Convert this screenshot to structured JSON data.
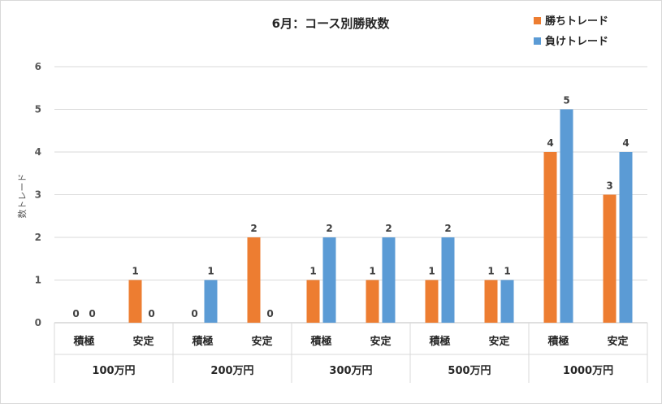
{
  "chart_data": {
    "type": "bar",
    "title": "6月：コース別勝敗数",
    "ylabel": "数トレード",
    "ylim": [
      0,
      6
    ],
    "yticks": [
      0,
      1,
      2,
      3,
      4,
      5,
      6
    ],
    "grid": true,
    "legend_position": "top-right",
    "groups": [
      "100万円",
      "200万円",
      "300万円",
      "500万円",
      "1000万円"
    ],
    "subcategories": [
      "積極",
      "安定",
      "積極",
      "安定",
      "積極",
      "安定",
      "積極",
      "安定",
      "積極",
      "安定"
    ],
    "series": [
      {
        "name": "勝ちトレード",
        "color": "#ed7d31",
        "values": [
          0,
          1,
          0,
          2,
          1,
          1,
          1,
          1,
          4,
          3
        ]
      },
      {
        "name": "負けトレード",
        "color": "#5b9bd5",
        "values": [
          0,
          0,
          1,
          0,
          2,
          2,
          2,
          1,
          5,
          4
        ]
      }
    ]
  }
}
